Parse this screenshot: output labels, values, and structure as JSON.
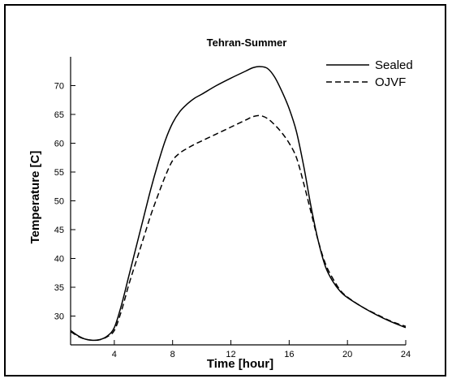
{
  "chart_data": {
    "type": "line",
    "title": "Tehran-Summer",
    "xlabel": "Time [hour]",
    "ylabel": "Temperature  [C]",
    "xlim": [
      1,
      24
    ],
    "ylim": [
      25,
      75
    ],
    "xticks": [
      4,
      8,
      12,
      16,
      20,
      24
    ],
    "yticks": [
      30,
      35,
      40,
      45,
      50,
      55,
      60,
      65,
      70
    ],
    "grid": false,
    "legend_position": "top-right",
    "series": [
      {
        "name": "Sealed",
        "style": "solid",
        "x": [
          1,
          1.5,
          2,
          2.5,
          3,
          3.5,
          4,
          4.5,
          5,
          5.5,
          6,
          6.5,
          7,
          7.5,
          8,
          8.5,
          9,
          9.5,
          10,
          11,
          12,
          13,
          13.5,
          14,
          14.5,
          15,
          15.5,
          16,
          16.5,
          17,
          17.5,
          18,
          18.5,
          19,
          19.5,
          20,
          21,
          22,
          23,
          24
        ],
        "y": [
          27.5,
          26.6,
          26.0,
          25.8,
          25.9,
          26.5,
          28.0,
          32.0,
          37.0,
          42.0,
          47.0,
          52.0,
          56.5,
          60.5,
          63.5,
          65.5,
          66.8,
          67.8,
          68.5,
          70.0,
          71.3,
          72.5,
          73.1,
          73.3,
          73.0,
          71.5,
          69.0,
          66.0,
          62.0,
          56.0,
          49.0,
          43.0,
          38.5,
          36.0,
          34.3,
          33.2,
          31.6,
          30.2,
          29.0,
          28.0
        ]
      },
      {
        "name": "OJVF",
        "style": "dashed",
        "x": [
          1,
          1.5,
          2,
          2.5,
          3,
          3.5,
          4,
          4.5,
          5,
          5.5,
          6,
          6.5,
          7,
          7.5,
          8,
          8.5,
          9,
          9.5,
          10,
          11,
          12,
          13,
          13.5,
          14,
          14.5,
          15,
          15.5,
          16,
          16.5,
          17,
          17.5,
          18,
          18.5,
          19,
          19.5,
          20,
          21,
          22,
          23,
          24
        ],
        "y": [
          27.3,
          26.5,
          26.0,
          25.8,
          25.9,
          26.4,
          27.5,
          31.0,
          35.5,
          39.5,
          43.5,
          47.5,
          51.0,
          54.3,
          57.0,
          58.3,
          59.1,
          59.8,
          60.4,
          61.6,
          62.8,
          64.0,
          64.6,
          64.8,
          64.3,
          63.2,
          61.8,
          60.0,
          57.5,
          53.0,
          48.0,
          43.0,
          39.0,
          36.5,
          34.5,
          33.3,
          31.6,
          30.3,
          29.1,
          28.2
        ]
      }
    ]
  }
}
